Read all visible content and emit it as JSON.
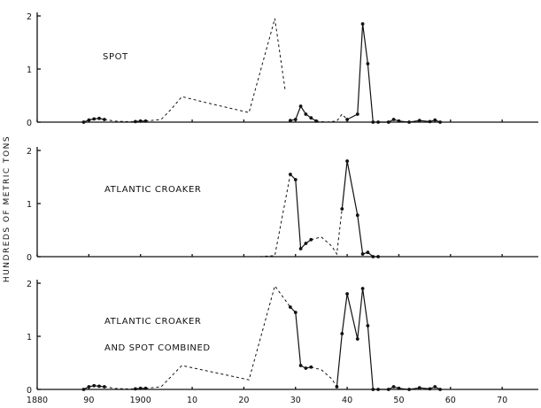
{
  "chart_data": {
    "type": "line",
    "ylabel": "HUNDREDS OF METRIC TONS",
    "x_tick_labels": [
      "1880",
      "90",
      "1900",
      "10",
      "20",
      "30",
      "40",
      "50",
      "60",
      "70"
    ],
    "x_tick_values": [
      1880,
      1890,
      1900,
      1910,
      1920,
      1930,
      1940,
      1950,
      1960,
      1970
    ],
    "xlim": [
      1880,
      1977
    ],
    "grid": false,
    "panels": [
      {
        "title_lines": [
          "SPOT"
        ],
        "ylim": [
          0,
          2
        ],
        "y_tick_labels": [
          "0",
          "1",
          "2"
        ],
        "series": [
          {
            "style": "solid",
            "points": [
              [
                1889,
                0
              ],
              [
                1890,
                0.04
              ],
              [
                1891,
                0.06
              ],
              [
                1892,
                0.07
              ],
              [
                1893,
                0.05
              ]
            ]
          },
          {
            "style": "dashed",
            "points": [
              [
                1893,
                0.05
              ],
              [
                1895,
                0.02
              ],
              [
                1897,
                0.01
              ],
              [
                1899,
                0.01
              ]
            ]
          },
          {
            "style": "solid",
            "points": [
              [
                1899,
                0.01
              ],
              [
                1900,
                0.02
              ],
              [
                1901,
                0.02
              ]
            ]
          },
          {
            "style": "dashed",
            "points": [
              [
                1901,
                0.02
              ],
              [
                1904,
                0.05
              ],
              [
                1906,
                0.25
              ],
              [
                1908,
                0.48
              ],
              [
                1913,
                0.36
              ],
              [
                1921,
                0.18
              ],
              [
                1926,
                1.95
              ],
              [
                1928,
                0.6
              ]
            ]
          },
          {
            "style": "solid",
            "points": [
              [
                1929,
                0.03
              ],
              [
                1930,
                0.05
              ],
              [
                1931,
                0.3
              ],
              [
                1932,
                0.15
              ],
              [
                1933,
                0.08
              ],
              [
                1934,
                0.02
              ]
            ]
          },
          {
            "style": "dashed",
            "points": [
              [
                1934,
                0.02
              ],
              [
                1936,
                0
              ],
              [
                1938,
                0.02
              ],
              [
                1939,
                0.15
              ],
              [
                1940,
                0.05
              ]
            ]
          },
          {
            "style": "solid",
            "points": [
              [
                1940,
                0.05
              ],
              [
                1942,
                0.15
              ],
              [
                1943,
                1.85
              ],
              [
                1944,
                1.1
              ],
              [
                1945,
                0
              ],
              [
                1946,
                0
              ],
              [
                1948,
                0
              ],
              [
                1949,
                0.05
              ],
              [
                1950,
                0.02
              ],
              [
                1952,
                0
              ],
              [
                1954,
                0.03
              ],
              [
                1956,
                0.01
              ],
              [
                1957,
                0.04
              ],
              [
                1958,
                0
              ]
            ]
          }
        ]
      },
      {
        "title_lines": [
          "ATLANTIC  CROAKER"
        ],
        "ylim": [
          0,
          2
        ],
        "y_tick_labels": [
          "0",
          "1",
          "2"
        ],
        "series": [
          {
            "style": "dashed",
            "points": [
              [
                1920,
                0
              ],
              [
                1923,
                0
              ],
              [
                1926,
                0.02
              ],
              [
                1929,
                1.55
              ]
            ]
          },
          {
            "style": "solid",
            "points": [
              [
                1929,
                1.55
              ],
              [
                1930,
                1.45
              ],
              [
                1931,
                0.15
              ],
              [
                1932,
                0.25
              ],
              [
                1933,
                0.32
              ]
            ]
          },
          {
            "style": "dashed",
            "points": [
              [
                1933,
                0.32
              ],
              [
                1935,
                0.37
              ],
              [
                1937,
                0.2
              ],
              [
                1938,
                0.05
              ],
              [
                1939,
                0.9
              ]
            ]
          },
          {
            "style": "solid",
            "points": [
              [
                1939,
                0.9
              ],
              [
                1940,
                1.8
              ],
              [
                1942,
                0.78
              ],
              [
                1943,
                0.05
              ],
              [
                1944,
                0.08
              ],
              [
                1945,
                0
              ],
              [
                1946,
                0
              ]
            ]
          }
        ]
      },
      {
        "title_lines": [
          "ATLANTIC  CROAKER",
          "AND  SPOT  COMBINED"
        ],
        "ylim": [
          0,
          2
        ],
        "y_tick_labels": [
          "0",
          "1",
          "2"
        ],
        "series": [
          {
            "style": "solid",
            "points": [
              [
                1889,
                0
              ],
              [
                1890,
                0.05
              ],
              [
                1891,
                0.07
              ],
              [
                1892,
                0.06
              ],
              [
                1893,
                0.05
              ]
            ]
          },
          {
            "style": "dashed",
            "points": [
              [
                1893,
                0.05
              ],
              [
                1895,
                0.02
              ],
              [
                1897,
                0.01
              ],
              [
                1899,
                0.01
              ]
            ]
          },
          {
            "style": "solid",
            "points": [
              [
                1899,
                0.01
              ],
              [
                1900,
                0.02
              ],
              [
                1901,
                0.02
              ]
            ]
          },
          {
            "style": "dashed",
            "points": [
              [
                1901,
                0.02
              ],
              [
                1904,
                0.05
              ],
              [
                1906,
                0.25
              ],
              [
                1908,
                0.45
              ],
              [
                1921,
                0.18
              ],
              [
                1926,
                1.95
              ],
              [
                1929,
                1.55
              ]
            ]
          },
          {
            "style": "solid",
            "points": [
              [
                1929,
                1.55
              ],
              [
                1930,
                1.45
              ],
              [
                1931,
                0.45
              ],
              [
                1932,
                0.4
              ],
              [
                1933,
                0.42
              ]
            ]
          },
          {
            "style": "dashed",
            "points": [
              [
                1933,
                0.42
              ],
              [
                1935,
                0.37
              ],
              [
                1937,
                0.2
              ],
              [
                1938,
                0.05
              ]
            ]
          },
          {
            "style": "solid",
            "points": [
              [
                1938,
                0.05
              ],
              [
                1939,
                1.05
              ],
              [
                1940,
                1.8
              ],
              [
                1942,
                0.95
              ],
              [
                1943,
                1.9
              ],
              [
                1944,
                1.2
              ],
              [
                1945,
                0
              ],
              [
                1946,
                0
              ],
              [
                1948,
                0
              ],
              [
                1949,
                0.05
              ],
              [
                1950,
                0.02
              ],
              [
                1952,
                0
              ],
              [
                1954,
                0.03
              ],
              [
                1956,
                0.01
              ],
              [
                1957,
                0.05
              ],
              [
                1958,
                0
              ]
            ]
          },
          {
            "style": "dashed",
            "points": [
              [
                1973,
                0
              ],
              [
                1977,
                0
              ]
            ]
          }
        ]
      }
    ]
  }
}
